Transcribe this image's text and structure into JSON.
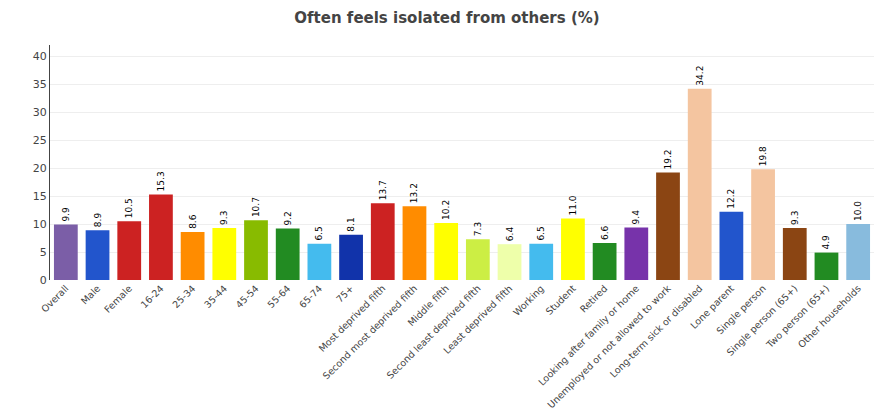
{
  "chart_data": {
    "type": "bar",
    "title": "Often feels isolated from others (%)",
    "categories": [
      "Overall",
      "Male",
      "Female",
      "16-24",
      "25-34",
      "35-44",
      "45-54",
      "55-64",
      "65-74",
      "75+",
      "Most deprived fifth",
      "Second most deprived fifth",
      "Middle fifth",
      "Second least deprived fifth",
      "Least deprived fifth",
      "Working",
      "Student",
      "Retired",
      "Looking after family or home",
      "Unemployed or not allowed to work",
      "Long-term sick or disabled",
      "Lone parent",
      "Single person",
      "Single person (65+)",
      "Two person (65+)",
      "Other households"
    ],
    "values": [
      9.9,
      8.9,
      10.5,
      15.3,
      8.6,
      9.3,
      10.7,
      9.2,
      6.5,
      8.1,
      13.7,
      13.2,
      10.2,
      7.3,
      6.4,
      6.5,
      11.0,
      6.6,
      9.4,
      19.2,
      34.2,
      12.2,
      19.8,
      9.3,
      4.9,
      10.0
    ],
    "value_labels": [
      "9.9",
      "8.9",
      "10.5",
      "15.3",
      "8.6",
      "9.3",
      "10.7",
      "9.2",
      "6.5",
      "8.1",
      "13.7",
      "13.2",
      "10.2",
      "7.3",
      "6.4",
      "6.5",
      "11.0",
      "6.6",
      "9.4",
      "19.2",
      "34.2",
      "12.2",
      "19.8",
      "9.3",
      "4.9",
      "10.0"
    ],
    "colors": [
      "#7B5EA7",
      "#2255CC",
      "#CC2222",
      "#CC2222",
      "#FF8C00",
      "#FFFF00",
      "#88BB00",
      "#228B22",
      "#44BBEE",
      "#1133AA",
      "#CC2222",
      "#FF8C00",
      "#FFFF00",
      "#CCEE44",
      "#EEFFAA",
      "#44BBEE",
      "#FFFF00",
      "#228B22",
      "#7733AA",
      "#8B4513",
      "#F4C5A0",
      "#2255CC",
      "#F4C5A0",
      "#8B4513",
      "#228B22",
      "#88BBDD"
    ],
    "ylim": [
      0,
      42
    ],
    "yticks": [
      0,
      5,
      10,
      15,
      20,
      25,
      30,
      35,
      40
    ],
    "grid": true,
    "data_labels": true
  }
}
